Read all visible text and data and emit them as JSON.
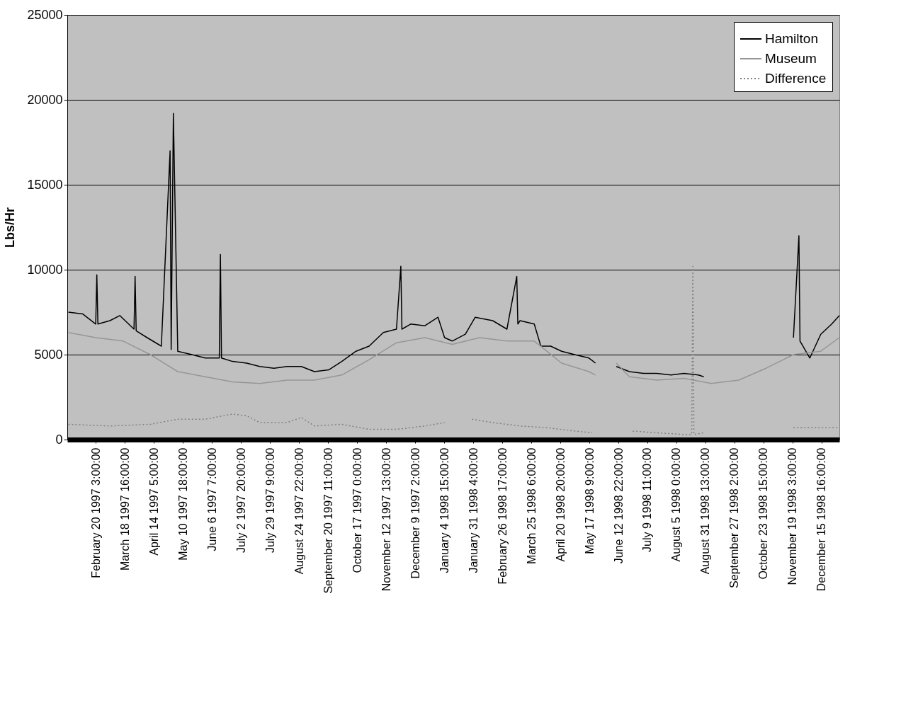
{
  "chart_data": {
    "type": "line",
    "ylabel": "Lbs/Hr",
    "xlim": [
      "1997-01-25",
      "1999-01-01"
    ],
    "ylim": [
      0,
      25000
    ],
    "yticks": [
      0,
      5000,
      10000,
      15000,
      20000,
      25000
    ],
    "xticks": [
      {
        "value": "1997-02-20T03:00",
        "label": "February 20 1997  3:00:00"
      },
      {
        "value": "1997-03-18T16:00",
        "label": "March 18 1997 16:00:00"
      },
      {
        "value": "1997-04-14T05:00",
        "label": "April 14 1997  5:00:00"
      },
      {
        "value": "1997-05-10T18:00",
        "label": "May 10 1997 18:00:00"
      },
      {
        "value": "1997-06-06T07:00",
        "label": "June  6 1997  7:00:00"
      },
      {
        "value": "1997-07-02T20:00",
        "label": "July  2 1997 20:00:00"
      },
      {
        "value": "1997-07-29T09:00",
        "label": "July 29 1997  9:00:00"
      },
      {
        "value": "1997-08-24T22:00",
        "label": "August 24 1997 22:00:00"
      },
      {
        "value": "1997-09-20T11:00",
        "label": "September 20 1997 11:00:00"
      },
      {
        "value": "1997-10-17T00:00",
        "label": "October 17 1997  0:00:00"
      },
      {
        "value": "1997-11-12T13:00",
        "label": "November 12 1997 13:00:00"
      },
      {
        "value": "1997-12-09T02:00",
        "label": "December  9 1997  2:00:00"
      },
      {
        "value": "1998-01-04T15:00",
        "label": "January  4 1998 15:00:00"
      },
      {
        "value": "1998-01-31T04:00",
        "label": "January 31 1998  4:00:00"
      },
      {
        "value": "1998-02-26T17:00",
        "label": "February 26 1998 17:00:00"
      },
      {
        "value": "1998-03-25T06:00",
        "label": "March 25 1998  6:00:00"
      },
      {
        "value": "1998-04-20T20:00",
        "label": "April 20 1998 20:00:00"
      },
      {
        "value": "1998-05-17T09:00",
        "label": "May 17 1998  9:00:00"
      },
      {
        "value": "1998-06-12T22:00",
        "label": "June 12 1998 22:00:00"
      },
      {
        "value": "1998-07-09T11:00",
        "label": "July  9 1998 11:00:00"
      },
      {
        "value": "1998-08-05T00:00",
        "label": "August  5 1998  0:00:00"
      },
      {
        "value": "1998-08-31T13:00",
        "label": "August 31 1998 13:00:00"
      },
      {
        "value": "1998-09-27T02:00",
        "label": "September 27 1998  2:00:00"
      },
      {
        "value": "1998-10-23T15:00",
        "label": "October 23 1998 15:00:00"
      },
      {
        "value": "1998-11-19T03:00",
        "label": "November 19 1998  3:00:00"
      },
      {
        "value": "1998-12-15T16:00",
        "label": "December 15 1998 16:00:00"
      }
    ],
    "grid": "y",
    "legend": "top right",
    "series": [
      {
        "name": "Hamilton",
        "color": "#000000",
        "line_style": "solid",
        "x": [
          "1997-01-26",
          "1997-02-08",
          "1997-02-20",
          "1997-02-21",
          "1997-02-22",
          "1997-03-05",
          "1997-03-14",
          "1997-03-27",
          "1997-03-28",
          "1997-03-29",
          "1997-04-08",
          "1997-04-21",
          "1997-04-29",
          "1997-04-30",
          "1997-05-02",
          "1997-05-06",
          "1997-05-19",
          "1997-05-31",
          "1997-06-13",
          "1997-06-14",
          "1997-06-15",
          "1997-06-25",
          "1997-07-08",
          "1997-07-20",
          "1997-08-02",
          "1997-08-14",
          "1997-08-27",
          "1997-09-08",
          "1997-09-21",
          "1997-10-03",
          "1997-10-16",
          "1997-10-28",
          "1997-11-10",
          "1997-11-22",
          "1997-11-26",
          "1997-11-27",
          "1997-12-05",
          "1997-12-18",
          "1997-12-30",
          "1998-01-05",
          "1998-01-12",
          "1998-01-24",
          "1998-02-02",
          "1998-02-18",
          "1998-03-03",
          "1998-03-12",
          "1998-03-13",
          "1998-03-15",
          "1998-03-28",
          "1998-04-03",
          "1998-04-12",
          "1998-04-22",
          "1998-05-04",
          "1998-05-17",
          "1998-05-23",
          "1998-05-27",
          "1998-06-11",
          "1998-06-23",
          "1998-07-06",
          "1998-07-18",
          "1998-07-31",
          "1998-08-12",
          "1998-08-25",
          "1998-08-30",
          "1998-09-03",
          "1998-11-20",
          "1998-11-25",
          "1998-11-26",
          "1998-12-05",
          "1998-12-15",
          "1998-12-25",
          "1999-01-01"
        ],
        "values": [
          7500,
          7400,
          6800,
          9700,
          6800,
          7000,
          7300,
          6500,
          9600,
          6400,
          6000,
          5500,
          17000,
          5300,
          19200,
          5200,
          5000,
          4800,
          4800,
          10900,
          4800,
          4600,
          4500,
          4300,
          4200,
          4300,
          4300,
          4000,
          4100,
          4600,
          5200,
          5500,
          6300,
          6500,
          10200,
          6500,
          6800,
          6700,
          7200,
          6000,
          5800,
          6200,
          7200,
          7000,
          6500,
          9600,
          6800,
          7000,
          6800,
          5500,
          5500,
          5200,
          5000,
          4800,
          4500,
          null,
          4300,
          4000,
          3900,
          3900,
          3800,
          3900,
          3800,
          3700,
          null,
          6000,
          12000,
          5800,
          4800,
          6200,
          6800,
          7300
        ]
      },
      {
        "name": "Museum",
        "color": "#969696",
        "line_style": "solid",
        "x": [
          "1997-01-26",
          "1997-02-20",
          "1997-03-17",
          "1997-04-11",
          "1997-05-06",
          "1997-05-31",
          "1997-06-25",
          "1997-07-20",
          "1997-08-14",
          "1997-09-08",
          "1997-10-03",
          "1997-10-28",
          "1997-11-22",
          "1997-12-18",
          "1998-01-12",
          "1998-02-06",
          "1998-03-03",
          "1998-03-28",
          "1998-04-22",
          "1998-05-17",
          "1998-05-23",
          "1998-05-27",
          "1998-06-11",
          "1998-06-23",
          "1998-07-18",
          "1998-08-12",
          "1998-09-06",
          "1998-10-01",
          "1998-10-26",
          "1998-11-20",
          "1998-12-15",
          "1999-01-01"
        ],
        "values": [
          6300,
          6000,
          5800,
          5000,
          4000,
          3700,
          3400,
          3300,
          3500,
          3500,
          3800,
          4700,
          5700,
          6000,
          5600,
          6000,
          5800,
          5800,
          4500,
          4000,
          3800,
          null,
          4500,
          3700,
          3500,
          3600,
          3300,
          3500,
          4200,
          5000,
          5200,
          6000
        ]
      },
      {
        "name": "Difference",
        "color": "#808080",
        "line_style": "dotted",
        "x": [
          "1997-01-26",
          "1997-03-05",
          "1997-04-11",
          "1997-05-06",
          "1997-05-31",
          "1997-06-25",
          "1997-07-08",
          "1997-07-20",
          "1997-08-14",
          "1997-08-27",
          "1997-09-08",
          "1997-10-03",
          "1997-10-28",
          "1997-11-22",
          "1997-12-18",
          "1998-01-05",
          "1998-01-08",
          "1998-01-30",
          "1998-02-18",
          "1998-03-15",
          "1998-04-09",
          "1998-05-04",
          "1998-05-20",
          "1998-05-27",
          "1998-06-26",
          "1998-07-18",
          "1998-08-12",
          "1998-08-19",
          "1998-08-20",
          "1998-08-21",
          "1998-08-30",
          "1998-09-03",
          "1998-11-20",
          "1999-01-01"
        ],
        "values": [
          900,
          800,
          900,
          1200,
          1200,
          1500,
          1400,
          1000,
          1000,
          1300,
          800,
          900,
          600,
          600,
          800,
          1000,
          null,
          1200,
          1000,
          800,
          700,
          500,
          400,
          null,
          500,
          400,
          300,
          300,
          10200,
          300,
          400,
          null,
          700,
          700
        ]
      }
    ]
  }
}
